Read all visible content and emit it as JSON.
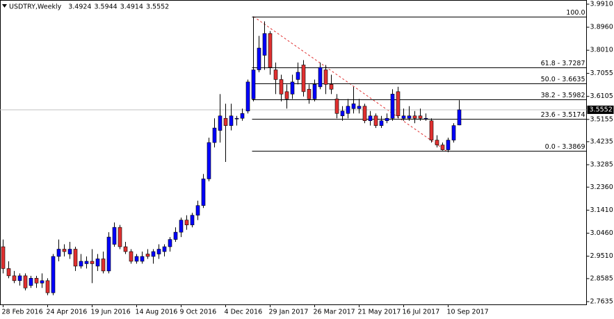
{
  "chart_data": {
    "type": "candlestick",
    "title": "USDTRY,Weekly",
    "categories": [
      "28 Feb 2016",
      null,
      null,
      null,
      null,
      null,
      null,
      null,
      "24 Apr 2016",
      null,
      null,
      null,
      null,
      null,
      null,
      null,
      "19 Jun 2016",
      null,
      null,
      null,
      null,
      null,
      null,
      null,
      "14 Aug 2016",
      null,
      null,
      null,
      null,
      null,
      null,
      null,
      "9 Oct 2016",
      null,
      null,
      null,
      null,
      null,
      null,
      null,
      "4 Dec 2016",
      null,
      null,
      null,
      null,
      null,
      null,
      null,
      "29 Jan 2017",
      null,
      null,
      null,
      null,
      null,
      null,
      null,
      "26 Mar 2017",
      null,
      null,
      null,
      null,
      null,
      null,
      null,
      "21 May 2017",
      null,
      null,
      null,
      null,
      null,
      null,
      null,
      "16 Jul 2017",
      null,
      null,
      null,
      null,
      null,
      null,
      null,
      "10 Sep 2017",
      null,
      null
    ],
    "open": [
      2.99,
      2.9,
      2.87,
      2.85,
      2.87,
      2.83,
      2.86,
      2.84,
      2.85,
      2.8,
      2.95,
      2.98,
      2.96,
      2.98,
      2.91,
      2.92,
      2.93,
      2.91,
      2.94,
      2.89,
      3.0,
      3.07,
      2.99,
      2.97,
      2.93,
      2.93,
      2.96,
      2.95,
      2.96,
      2.97,
      2.99,
      3.02,
      3.05,
      3.1,
      3.08,
      3.12,
      3.16,
      3.27,
      3.42,
      3.47,
      3.52,
      3.49,
      3.52,
      3.52,
      3.55,
      3.6,
      3.72,
      3.78,
      3.87,
      3.72,
      3.68,
      3.63,
      3.62,
      3.68,
      3.74,
      3.64,
      3.6,
      3.65,
      3.72,
      3.66,
      3.6,
      3.53,
      3.54,
      3.56,
      3.56,
      3.57,
      3.51,
      3.53,
      3.49,
      3.51,
      3.52,
      3.63,
      3.52,
      3.52,
      3.53,
      3.53,
      3.52,
      3.51,
      3.43,
      3.41,
      3.39,
      3.43,
      3.4924
    ],
    "high": [
      3.02,
      2.93,
      2.89,
      2.88,
      2.88,
      2.87,
      2.87,
      2.88,
      2.86,
      2.96,
      3.02,
      3.0,
      3.01,
      2.99,
      2.96,
      2.95,
      2.98,
      2.96,
      2.97,
      3.05,
      3.09,
      3.08,
      3.01,
      2.98,
      2.96,
      2.97,
      2.98,
      2.98,
      3.0,
      3.0,
      3.03,
      3.07,
      3.11,
      3.12,
      3.13,
      3.18,
      3.29,
      3.44,
      3.52,
      3.62,
      3.58,
      3.58,
      3.53,
      3.56,
      3.68,
      3.94,
      3.86,
      3.92,
      3.88,
      3.75,
      3.7,
      3.66,
      3.7,
      3.75,
      3.76,
      3.66,
      3.68,
      3.75,
      3.74,
      3.7,
      3.62,
      3.57,
      3.6,
      3.65,
      3.6,
      3.58,
      3.55,
      3.54,
      3.53,
      3.54,
      3.64,
      3.65,
      3.56,
      3.57,
      3.55,
      3.56,
      3.54,
      3.52,
      3.45,
      3.42,
      3.44,
      3.5,
      3.5944
    ],
    "low": [
      2.88,
      2.86,
      2.84,
      2.83,
      2.81,
      2.82,
      2.82,
      2.82,
      2.79,
      2.79,
      2.93,
      2.95,
      2.94,
      2.89,
      2.9,
      2.9,
      2.84,
      2.89,
      2.88,
      2.88,
      2.99,
      2.98,
      2.96,
      2.92,
      2.92,
      2.92,
      2.94,
      2.92,
      2.94,
      2.95,
      2.97,
      3.01,
      3.03,
      3.06,
      3.07,
      3.1,
      3.15,
      3.26,
      3.4,
      3.42,
      3.34,
      3.47,
      3.49,
      3.51,
      3.54,
      3.59,
      3.71,
      3.72,
      3.7,
      3.62,
      3.59,
      3.56,
      3.6,
      3.66,
      3.61,
      3.58,
      3.59,
      3.64,
      3.62,
      3.62,
      3.52,
      3.51,
      3.52,
      3.54,
      3.54,
      3.5,
      3.49,
      3.48,
      3.48,
      3.5,
      3.51,
      3.52,
      3.51,
      3.51,
      3.5,
      3.51,
      3.51,
      3.42,
      3.4,
      3.387,
      3.38,
      3.42,
      3.4914
    ],
    "close": [
      2.9,
      2.87,
      2.85,
      2.87,
      2.82,
      2.86,
      2.84,
      2.85,
      2.8,
      2.95,
      2.98,
      2.97,
      2.98,
      2.91,
      2.93,
      2.93,
      2.92,
      2.94,
      2.89,
      3.03,
      3.07,
      2.99,
      2.97,
      2.93,
      2.95,
      2.95,
      2.95,
      2.97,
      2.98,
      2.99,
      3.02,
      3.05,
      3.1,
      3.08,
      3.12,
      3.16,
      3.27,
      3.42,
      3.48,
      3.53,
      3.49,
      3.53,
      3.52,
      3.54,
      3.67,
      3.72,
      3.81,
      3.87,
      3.73,
      3.68,
      3.62,
      3.6,
      3.67,
      3.71,
      3.63,
      3.6,
      3.66,
      3.73,
      3.66,
      3.64,
      3.54,
      3.55,
      3.57,
      3.58,
      3.57,
      3.51,
      3.53,
      3.49,
      3.51,
      3.52,
      3.62,
      3.53,
      3.53,
      3.53,
      3.52,
      3.52,
      3.52,
      3.43,
      3.41,
      3.39,
      3.43,
      3.49,
      3.5552
    ],
    "up_color": "#0000ff",
    "down_color": "#e03030",
    "ylim": [
      2.7635,
      3.991
    ],
    "yticks": [
      {
        "value": 3.991,
        "label": "3.9910"
      },
      {
        "value": 3.896,
        "label": "3.8960"
      },
      {
        "value": 3.801,
        "label": "3.8010"
      },
      3.7055,
      3.6105,
      3.5155,
      3.4235,
      3.3285,
      {
        "value": 3.236,
        "label": "3.2360"
      },
      {
        "value": 3.141,
        "label": "3.1410"
      },
      {
        "value": 3.046,
        "label": "3.0460"
      },
      {
        "value": 2.951,
        "label": "2.9510"
      },
      2.8585,
      2.7635
    ],
    "fibonacci": {
      "color": "#000000",
      "trend_color": "#e03030",
      "levels": [
        {
          "value": 3.94,
          "label": "100.0"
        },
        {
          "value": 3.7287,
          "label": "61.8 - 3.7287"
        },
        {
          "value": 3.6635,
          "label": "50.0 - 3.6635"
        },
        {
          "value": 3.5982,
          "label": "38.2 - 3.5982"
        },
        {
          "value": 3.5174,
          "label": "23.6 - 3.5174"
        },
        {
          "value": 3.3869,
          "label": "0.0 - 3.3869"
        }
      ]
    }
  }
}
